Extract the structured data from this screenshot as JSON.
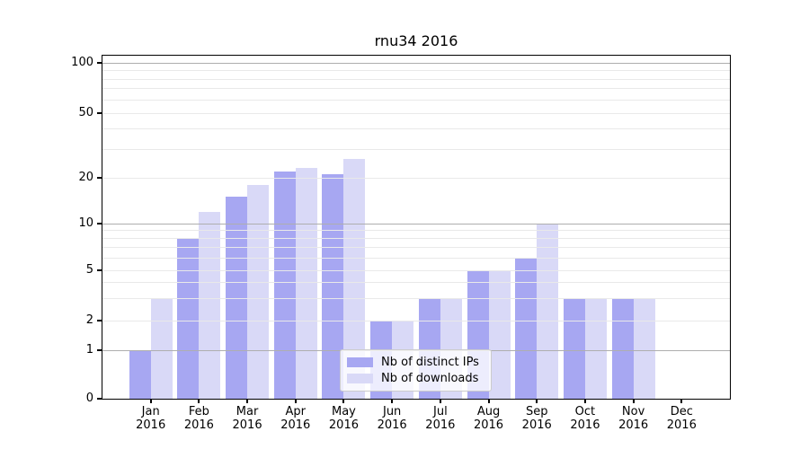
{
  "title": "rnu34 2016",
  "colors": {
    "distinct_ips_bar": "#a7a7f2",
    "downloads_bar": "#d9d9f7",
    "major_gridline": "#aeaeae",
    "minor_gridline": "#e9e9e9",
    "axis": "#000000"
  },
  "legend": {
    "position": "lower-center",
    "items": [
      {
        "label": "Nb of distinct IPs",
        "color": "#a7a7f2"
      },
      {
        "label": "Nb of downloads",
        "color": "#d9d9f7"
      }
    ]
  },
  "chart_data": {
    "type": "bar",
    "title": "rnu34 2016",
    "year_label": "2016",
    "categories": [
      "Jan",
      "Feb",
      "Mar",
      "Apr",
      "May",
      "Jun",
      "Jul",
      "Aug",
      "Sep",
      "Oct",
      "Nov",
      "Dec"
    ],
    "series": [
      {
        "name": "Nb of distinct IPs",
        "color": "#a7a7f2",
        "values": [
          1,
          8,
          15,
          22,
          21,
          2,
          3,
          5,
          6,
          3,
          3,
          0
        ]
      },
      {
        "name": "Nb of downloads",
        "color": "#d9d9f7",
        "values": [
          3,
          12,
          18,
          23,
          26,
          2,
          3,
          5,
          10,
          3,
          3,
          0
        ]
      }
    ],
    "xlabel": "",
    "ylabel": "",
    "yscale": "symlog",
    "ylim": [
      0,
      110
    ],
    "ytick_values": [
      0,
      1,
      2,
      5,
      10,
      20,
      50,
      100
    ],
    "ytick_labels": [
      "0",
      "1",
      "2",
      "5",
      "10",
      "20",
      "50",
      "100"
    ],
    "major_gridlines": [
      1,
      10,
      100
    ],
    "minor_gridlines": [
      2,
      3,
      4,
      5,
      6,
      7,
      8,
      9,
      20,
      30,
      40,
      50,
      60,
      70,
      80,
      90
    ],
    "grid": true,
    "legend_position": "lower-center"
  }
}
